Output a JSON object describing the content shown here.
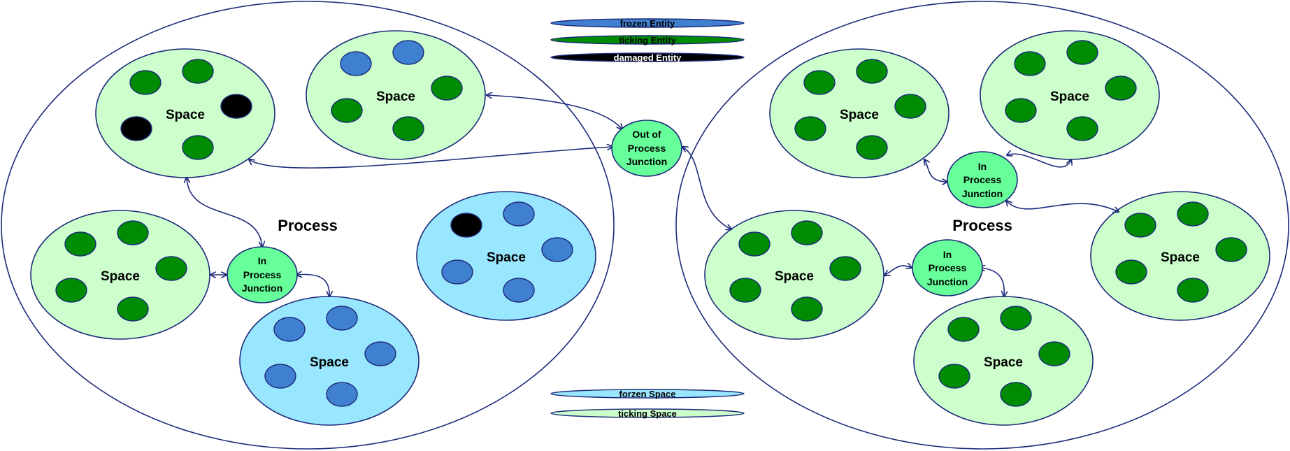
{
  "colors": {
    "outline": "#1c2a7a",
    "ticking_space": "#ccffcc",
    "frozen_space": "#99e6ff",
    "ticking_entity": "#008c00",
    "frozen_entity": "#4080d0",
    "damaged_entity": "#000000",
    "junction": "#66ff99"
  },
  "legend": {
    "frozen_entity": "frozen Entity",
    "ticking_entity": "ticking Entity",
    "damaged_entity": "damaged Entity",
    "frozen_space": "forzen Space",
    "ticking_space": "ticking Space"
  },
  "processes": {
    "left": {
      "label": "Process"
    },
    "right": {
      "label": "Process"
    }
  },
  "spaces": {
    "left_top_left": {
      "label": "Space",
      "state": "ticking"
    },
    "left_top_right": {
      "label": "Space",
      "state": "ticking"
    },
    "left_mid_left": {
      "label": "Space",
      "state": "ticking"
    },
    "left_bottom": {
      "label": "Space",
      "state": "frozen"
    },
    "left_right": {
      "label": "Space",
      "state": "frozen"
    },
    "right_top_left": {
      "label": "Space",
      "state": "ticking"
    },
    "right_top_right": {
      "label": "Space",
      "state": "ticking"
    },
    "right_mid_left": {
      "label": "Space",
      "state": "ticking"
    },
    "right_bottom": {
      "label": "Space",
      "state": "ticking"
    },
    "right_right": {
      "label": "Space",
      "state": "ticking"
    }
  },
  "junctions": {
    "out_of_process": {
      "line1": "Out of",
      "line2": "Process",
      "line3": "Junction"
    },
    "left_in_process": {
      "line1": "In",
      "line2": "Process",
      "line3": "Junction"
    },
    "right_in_process_top": {
      "line1": "In",
      "line2": "Process",
      "line3": "Junction"
    },
    "right_in_process_bottom": {
      "line1": "In",
      "line2": "Process",
      "line3": "Junction"
    }
  }
}
